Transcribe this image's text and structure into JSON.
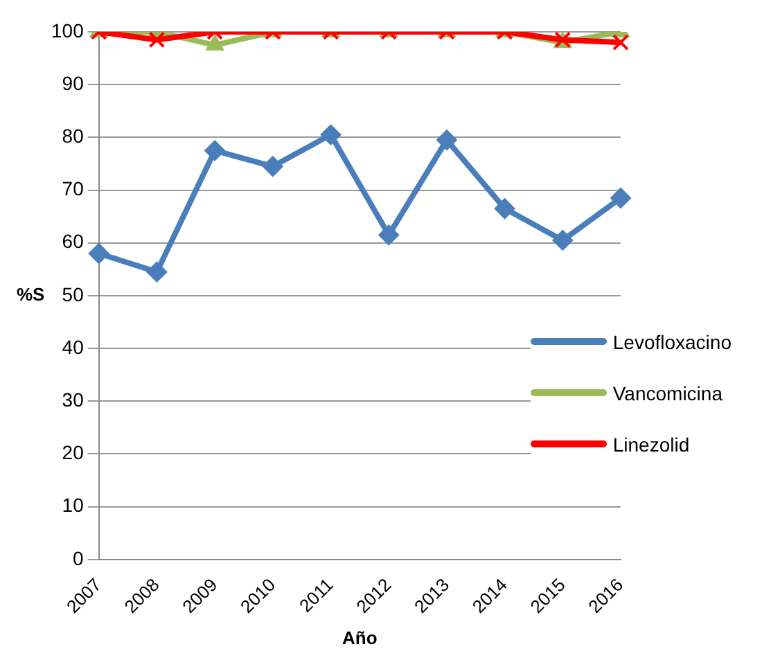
{
  "chart_data": {
    "type": "line",
    "xlabel": "Año",
    "ylabel": "%S",
    "categories": [
      "2007",
      "2008",
      "2009",
      "2010",
      "2011",
      "2012",
      "2013",
      "2014",
      "2015",
      "2016"
    ],
    "series": [
      {
        "name": "Levofloxacino",
        "color": "#4a7ebb",
        "marker": "diamond",
        "values": [
          58,
          54.5,
          77.5,
          74.5,
          80.5,
          61.5,
          79.5,
          66.5,
          60.5,
          68.5
        ]
      },
      {
        "name": "Vancomicina",
        "color": "#9bbb59",
        "marker": "triangle",
        "values": [
          100,
          100,
          97.5,
          100,
          100,
          100,
          100,
          100,
          98,
          100
        ]
      },
      {
        "name": "Linezolid",
        "color": "#ff0000",
        "marker": "cross",
        "values": [
          100,
          98.5,
          100,
          100,
          100,
          100,
          100,
          100,
          98.5,
          98
        ]
      }
    ],
    "ylim": [
      0,
      100
    ],
    "yticks": [
      0,
      10,
      20,
      30,
      40,
      50,
      60,
      70,
      80,
      90,
      100
    ],
    "grid": "y",
    "legend": "right",
    "line_style": "solid"
  }
}
